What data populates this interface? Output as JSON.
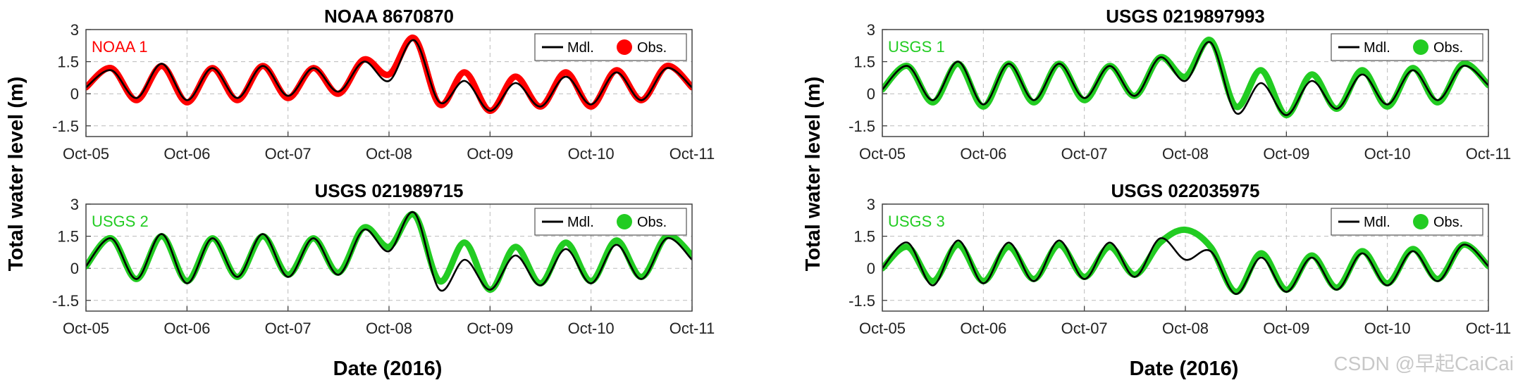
{
  "figure": {
    "ylabel_left": "Total water level (m)",
    "ylabel_right": "Total water level (m)",
    "xlabel_left": "Date (2016)",
    "xlabel_right": "Date (2016)",
    "watermark": "CSDN @早起CaiCai",
    "legend_model_label": "Mdl.",
    "legend_obs_label": "Obs.",
    "model_color": "#000000",
    "obs_colors": {
      "red": "#ff0000",
      "green": "#22cc22"
    }
  },
  "chart_data": [
    {
      "type": "line",
      "title": "NOAA 8670870",
      "station_label": "NOAA 1",
      "obs_color": "#ff0000",
      "x_ticks": [
        "Oct-05",
        "Oct-06",
        "Oct-07",
        "Oct-08",
        "Oct-09",
        "Oct-10",
        "Oct-11"
      ],
      "y_ticks": [
        "-1.5",
        "0",
        "1.5",
        "3"
      ],
      "xlim_days": [
        0,
        6
      ],
      "ylim": [
        -2,
        3
      ],
      "grid": true,
      "legend_position": "top-right",
      "series": [
        {
          "name": "Mdl.",
          "x": [
            0,
            0.25,
            0.5,
            0.75,
            1,
            1.25,
            1.5,
            1.75,
            2,
            2.25,
            2.5,
            2.75,
            3,
            3.25,
            3.5,
            3.75,
            4,
            4.25,
            4.5,
            4.75,
            5,
            5.25,
            5.5,
            5.75,
            6
          ],
          "values": [
            0.3,
            1.1,
            -0.2,
            1.4,
            -0.3,
            1.2,
            -0.2,
            1.3,
            -0.1,
            1.2,
            0.1,
            1.5,
            0.6,
            2.5,
            -0.4,
            0.6,
            -0.8,
            0.5,
            -0.6,
            0.8,
            -0.5,
            1.0,
            -0.3,
            1.2,
            0.3
          ]
        },
        {
          "name": "Obs.",
          "x": [
            0,
            0.25,
            0.5,
            0.75,
            1,
            1.25,
            1.5,
            1.75,
            2,
            2.25,
            2.5,
            2.75,
            3,
            3.25,
            3.5,
            3.75,
            4,
            4.25,
            4.5,
            4.75,
            5,
            5.25,
            5.5,
            5.75,
            6
          ],
          "values": [
            0.3,
            1.2,
            -0.3,
            1.3,
            -0.4,
            1.2,
            -0.3,
            1.3,
            -0.2,
            1.2,
            0.0,
            1.6,
            0.9,
            2.6,
            -0.5,
            1.0,
            -0.8,
            0.8,
            -0.6,
            1.0,
            -0.6,
            1.1,
            -0.3,
            1.3,
            0.3
          ]
        }
      ]
    },
    {
      "type": "line",
      "title": "USGS 0219897993",
      "station_label": "USGS 1",
      "obs_color": "#22cc22",
      "x_ticks": [
        "Oct-05",
        "Oct-06",
        "Oct-07",
        "Oct-08",
        "Oct-09",
        "Oct-10",
        "Oct-11"
      ],
      "y_ticks": [
        "-1.5",
        "0",
        "1.5",
        "3"
      ],
      "xlim_days": [
        0,
        6
      ],
      "ylim": [
        -2,
        3
      ],
      "grid": true,
      "legend_position": "top-right",
      "series": [
        {
          "name": "Mdl.",
          "x": [
            0,
            0.25,
            0.5,
            0.75,
            1,
            1.25,
            1.5,
            1.75,
            2,
            2.25,
            2.5,
            2.75,
            3,
            3.25,
            3.5,
            3.75,
            4,
            4.25,
            4.5,
            4.75,
            5,
            5.25,
            5.5,
            5.75,
            6
          ],
          "values": [
            0.2,
            1.3,
            -0.3,
            1.5,
            -0.5,
            1.4,
            -0.3,
            1.4,
            -0.2,
            1.3,
            -0.1,
            1.7,
            0.6,
            2.4,
            -0.9,
            0.5,
            -1.0,
            0.6,
            -0.7,
            0.9,
            -0.5,
            1.1,
            -0.3,
            1.3,
            0.4
          ]
        },
        {
          "name": "Obs.",
          "x": [
            0,
            0.25,
            0.5,
            0.75,
            1,
            1.25,
            1.5,
            1.75,
            2,
            2.25,
            2.5,
            2.75,
            3,
            3.25,
            3.5,
            3.75,
            4,
            4.25,
            4.5,
            4.75,
            5,
            5.25,
            5.5,
            5.75,
            6
          ],
          "values": [
            0.2,
            1.3,
            -0.4,
            1.4,
            -0.6,
            1.4,
            -0.4,
            1.4,
            -0.3,
            1.3,
            -0.1,
            1.7,
            0.8,
            2.5,
            -0.6,
            1.1,
            -1.0,
            0.9,
            -0.7,
            1.1,
            -0.6,
            1.2,
            -0.4,
            1.4,
            0.4
          ]
        }
      ]
    },
    {
      "type": "line",
      "title": "USGS 021989715",
      "station_label": "USGS 2",
      "obs_color": "#22cc22",
      "x_ticks": [
        "Oct-05",
        "Oct-06",
        "Oct-07",
        "Oct-08",
        "Oct-09",
        "Oct-10",
        "Oct-11"
      ],
      "y_ticks": [
        "-1.5",
        "0",
        "1.5",
        "3"
      ],
      "xlim_days": [
        0,
        6
      ],
      "ylim": [
        -2,
        3
      ],
      "grid": true,
      "legend_position": "top-right",
      "series": [
        {
          "name": "Mdl.",
          "x": [
            0,
            0.25,
            0.5,
            0.75,
            1,
            1.25,
            1.5,
            1.75,
            2,
            2.25,
            2.5,
            2.75,
            3,
            3.25,
            3.5,
            3.75,
            4,
            4.25,
            4.5,
            4.75,
            5,
            5.25,
            5.5,
            5.75,
            6
          ],
          "values": [
            0.1,
            1.4,
            -0.5,
            1.6,
            -0.7,
            1.4,
            -0.4,
            1.6,
            -0.4,
            1.4,
            -0.3,
            1.8,
            0.8,
            2.6,
            -1.0,
            0.4,
            -1.0,
            0.6,
            -0.8,
            0.9,
            -0.7,
            1.1,
            -0.5,
            1.4,
            0.4
          ]
        },
        {
          "name": "Obs.",
          "x": [
            0,
            0.25,
            0.5,
            0.75,
            1,
            1.25,
            1.5,
            1.75,
            2,
            2.25,
            2.5,
            2.75,
            3,
            3.25,
            3.5,
            3.75,
            4,
            4.25,
            4.5,
            4.75,
            5,
            5.25,
            5.5,
            5.75,
            6
          ],
          "values": [
            0.1,
            1.4,
            -0.5,
            1.5,
            -0.6,
            1.4,
            -0.4,
            1.5,
            -0.3,
            1.4,
            -0.2,
            1.9,
            1.0,
            2.5,
            -0.6,
            1.2,
            -1.0,
            1.0,
            -0.7,
            1.2,
            -0.6,
            1.3,
            -0.4,
            1.5,
            0.6
          ]
        }
      ]
    },
    {
      "type": "line",
      "title": "USGS 022035975",
      "station_label": "USGS 3",
      "obs_color": "#22cc22",
      "x_ticks": [
        "Oct-05",
        "Oct-06",
        "Oct-07",
        "Oct-08",
        "Oct-09",
        "Oct-10",
        "Oct-11"
      ],
      "y_ticks": [
        "-1.5",
        "0",
        "1.5",
        "3"
      ],
      "xlim_days": [
        0,
        6
      ],
      "ylim": [
        -2,
        3
      ],
      "grid": true,
      "legend_position": "top-right",
      "series": [
        {
          "name": "Mdl.",
          "x": [
            0,
            0.25,
            0.5,
            0.75,
            1,
            1.25,
            1.5,
            1.75,
            2,
            2.25,
            2.5,
            2.75,
            3,
            3.25,
            3.5,
            3.75,
            4,
            4.25,
            4.5,
            4.75,
            5,
            5.25,
            5.5,
            5.75,
            6
          ],
          "values": [
            0.0,
            1.2,
            -0.8,
            1.3,
            -0.7,
            1.2,
            -0.6,
            1.3,
            -0.5,
            1.2,
            -0.4,
            1.4,
            0.4,
            0.8,
            -1.2,
            0.5,
            -1.1,
            0.5,
            -1.0,
            0.7,
            -0.8,
            0.8,
            -0.6,
            1.1,
            0.1
          ]
        },
        {
          "name": "Obs.",
          "x": [
            0,
            0.25,
            0.5,
            0.75,
            1,
            1.25,
            1.5,
            1.75,
            2,
            2.25,
            2.5,
            2.75,
            3,
            3.25,
            3.5,
            3.75,
            4,
            4.25,
            4.5,
            4.75,
            5,
            5.25,
            5.5,
            5.75,
            6
          ],
          "values": [
            0.0,
            1.0,
            -0.6,
            1.1,
            -0.6,
            1.0,
            -0.5,
            1.1,
            -0.4,
            1.0,
            -0.3,
            1.2,
            1.8,
            1.0,
            -1.1,
            0.7,
            -1.0,
            0.6,
            -0.9,
            0.8,
            -0.7,
            0.9,
            -0.5,
            1.1,
            0.1
          ]
        }
      ]
    }
  ]
}
